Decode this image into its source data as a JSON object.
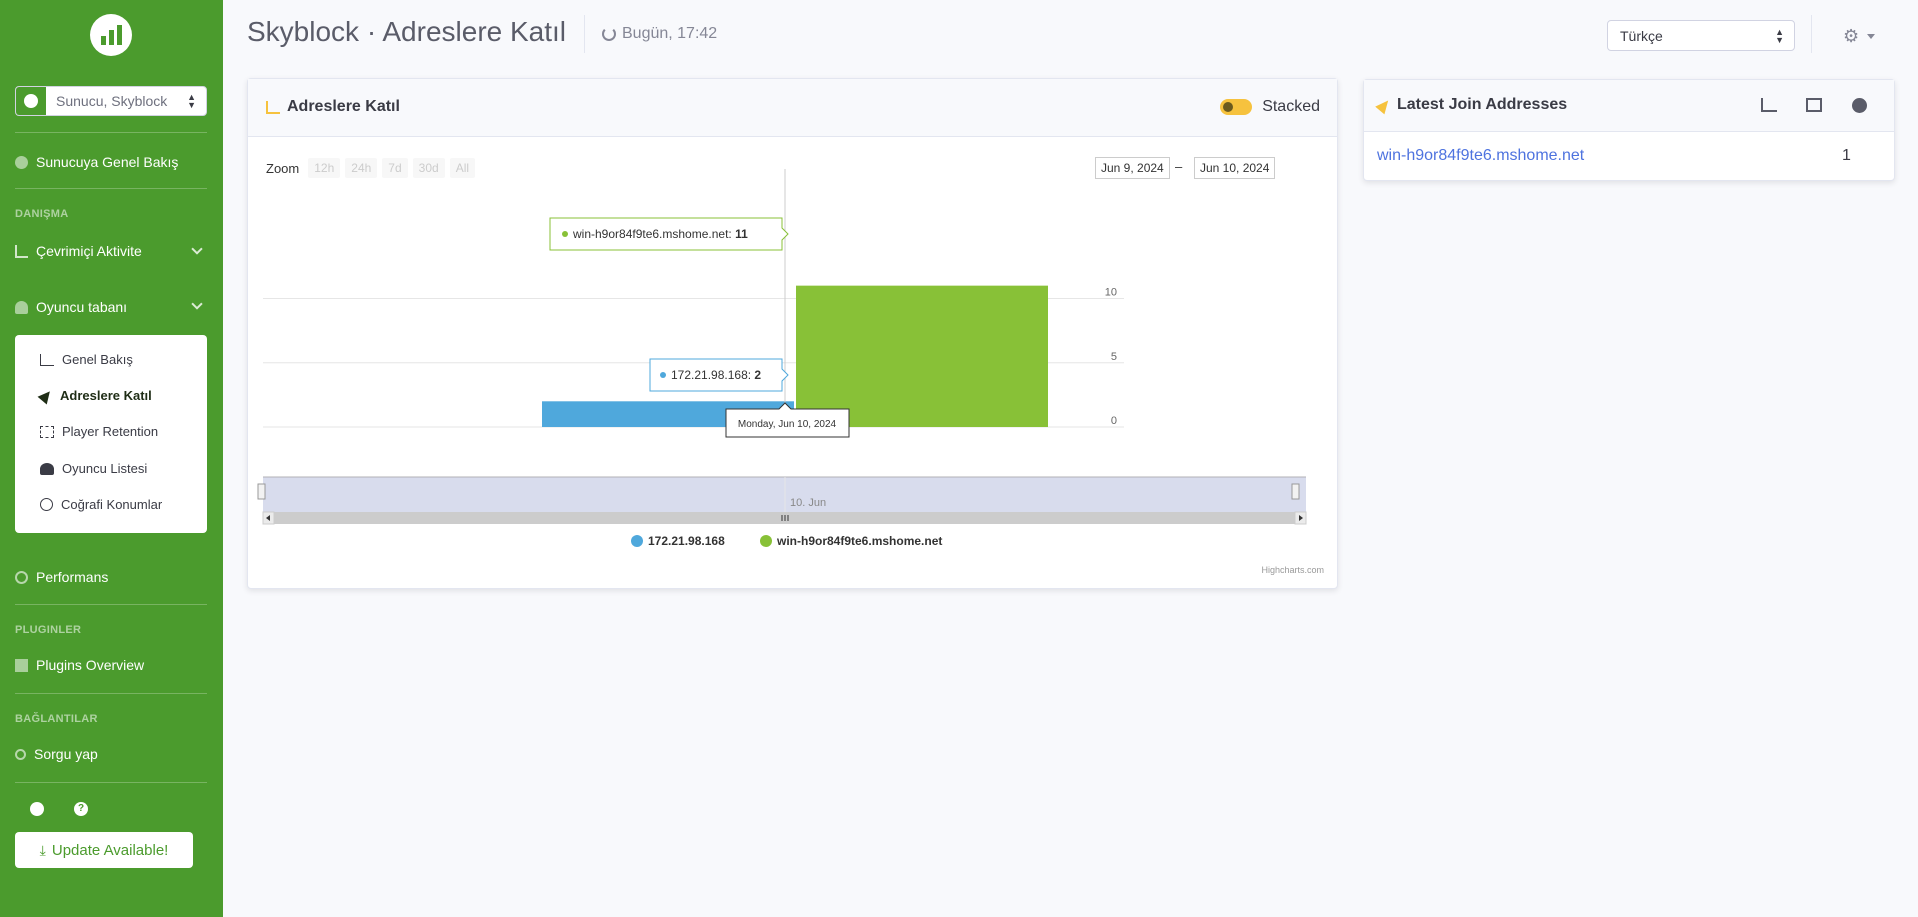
{
  "sidebar": {
    "server_select": "Sunucu, Skyblock",
    "overview": "Sunucuya Genel Bakış",
    "section_danisma": "DANIŞMA",
    "online_activity": "Çevrimiçi Aktivite",
    "player_base": "Oyuncu tabanı",
    "subitems": [
      "Genel Bakış",
      "Adreslere Katıl",
      "Player Retention",
      "Oyuncu Listesi",
      "Coğrafi Konumlar"
    ],
    "performance": "Performans",
    "section_plugins": "PLUGINLER",
    "plugins_overview": "Plugins Overview",
    "section_links": "BAĞLANTILAR",
    "query": "Sorgu yap",
    "update_button": "Update Available!"
  },
  "header": {
    "title": "Skyblock · Adreslere Katıl",
    "refresh": "Bugün, 17:42",
    "language": "Türkçe"
  },
  "chart_card": {
    "title": "Adreslere Katıl",
    "stacked_label": "Stacked",
    "zoom_label": "Zoom",
    "zoom_buttons": [
      "12h",
      "24h",
      "7d",
      "30d",
      "All"
    ],
    "date_from": "Jun 9, 2024",
    "date_dash": "–",
    "date_to": "Jun 10, 2024",
    "credit": "Highcharts.com"
  },
  "chart_data": {
    "type": "bar",
    "stacked": true,
    "categories": [
      "Jun 9, 2024",
      "Jun 10, 2024"
    ],
    "series": [
      {
        "name": "172.21.98.168",
        "values": [
          2,
          0
        ],
        "color": "#4fa8dc"
      },
      {
        "name": "win-h9or84f9te6.mshome.net",
        "values": [
          0,
          11
        ],
        "color": "#88c137"
      }
    ],
    "ylim": [
      0,
      12
    ],
    "y_ticks": [
      "0",
      "5",
      "10"
    ],
    "navigator_label": "10. Jun",
    "tooltip_green": "win-h9or84f9te6.mshome.net: ",
    "tooltip_green_value": "11",
    "tooltip_blue": "172.21.98.168: ",
    "tooltip_blue_value": "2",
    "tooltip_date": "Monday, Jun 10, 2024",
    "legend_position": "bottom-center"
  },
  "latest": {
    "title": "Latest Join Addresses",
    "rows": [
      {
        "address": "win-h9or84f9te6.mshome.net",
        "count": "1"
      }
    ]
  }
}
